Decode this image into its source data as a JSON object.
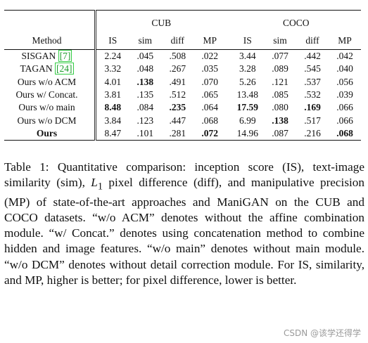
{
  "table": {
    "group_headers": [
      "CUB",
      "COCO"
    ],
    "method_header": "Method",
    "metric_headers": [
      "IS",
      "sim",
      "diff",
      "MP"
    ],
    "rows": [
      {
        "method_pre": "SISGAN ",
        "cite": "[7]",
        "method_post": "",
        "cub": [
          {
            "v": "2.24",
            "b": false
          },
          {
            "v": ".045",
            "b": false
          },
          {
            "v": ".508",
            "b": false
          },
          {
            "v": ".022",
            "b": false
          }
        ],
        "coco": [
          {
            "v": "3.44",
            "b": false
          },
          {
            "v": ".077",
            "b": false
          },
          {
            "v": ".442",
            "b": false
          },
          {
            "v": ".042",
            "b": false
          }
        ],
        "bold_method": false
      },
      {
        "method_pre": "TAGAN ",
        "cite": "[24]",
        "method_post": "",
        "cub": [
          {
            "v": "3.32",
            "b": false
          },
          {
            "v": ".048",
            "b": false
          },
          {
            "v": ".267",
            "b": false
          },
          {
            "v": ".035",
            "b": false
          }
        ],
        "coco": [
          {
            "v": "3.28",
            "b": false
          },
          {
            "v": ".089",
            "b": false
          },
          {
            "v": ".545",
            "b": false
          },
          {
            "v": ".040",
            "b": false
          }
        ],
        "bold_method": false
      },
      {
        "method_pre": "Ours w/o ACM",
        "cite": "",
        "method_post": "",
        "cub": [
          {
            "v": "4.01",
            "b": false
          },
          {
            "v": ".138",
            "b": true
          },
          {
            "v": ".491",
            "b": false
          },
          {
            "v": ".070",
            "b": false
          }
        ],
        "coco": [
          {
            "v": "5.26",
            "b": false
          },
          {
            "v": ".121",
            "b": false
          },
          {
            "v": ".537",
            "b": false
          },
          {
            "v": ".056",
            "b": false
          }
        ],
        "bold_method": false
      },
      {
        "method_pre": "Ours w/ Concat.",
        "cite": "",
        "method_post": "",
        "cub": [
          {
            "v": "3.81",
            "b": false
          },
          {
            "v": ".135",
            "b": false
          },
          {
            "v": ".512",
            "b": false
          },
          {
            "v": ".065",
            "b": false
          }
        ],
        "coco": [
          {
            "v": "13.48",
            "b": false
          },
          {
            "v": ".085",
            "b": false
          },
          {
            "v": ".532",
            "b": false
          },
          {
            "v": ".039",
            "b": false
          }
        ],
        "bold_method": false
      },
      {
        "method_pre": "Ours w/o main",
        "cite": "",
        "method_post": "",
        "cub": [
          {
            "v": "8.48",
            "b": true
          },
          {
            "v": ".084",
            "b": false
          },
          {
            "v": ".235",
            "b": true
          },
          {
            "v": ".064",
            "b": false
          }
        ],
        "coco": [
          {
            "v": "17.59",
            "b": true
          },
          {
            "v": ".080",
            "b": false
          },
          {
            "v": ".169",
            "b": true
          },
          {
            "v": ".066",
            "b": false
          }
        ],
        "bold_method": false
      },
      {
        "method_pre": "Ours w/o DCM",
        "cite": "",
        "method_post": "",
        "cub": [
          {
            "v": "3.84",
            "b": false
          },
          {
            "v": ".123",
            "b": false
          },
          {
            "v": ".447",
            "b": false
          },
          {
            "v": ".068",
            "b": false
          }
        ],
        "coco": [
          {
            "v": "6.99",
            "b": false
          },
          {
            "v": ".138",
            "b": true
          },
          {
            "v": ".517",
            "b": false
          },
          {
            "v": ".066",
            "b": false
          }
        ],
        "bold_method": false
      },
      {
        "method_pre": "Ours",
        "cite": "",
        "method_post": "",
        "cub": [
          {
            "v": "8.47",
            "b": false
          },
          {
            "v": ".101",
            "b": false
          },
          {
            "v": ".281",
            "b": false
          },
          {
            "v": ".072",
            "b": true
          }
        ],
        "coco": [
          {
            "v": "14.96",
            "b": false
          },
          {
            "v": ".087",
            "b": false
          },
          {
            "v": ".216",
            "b": false
          },
          {
            "v": ".068",
            "b": true
          }
        ],
        "bold_method": true
      }
    ]
  },
  "caption": {
    "label": "Table 1:",
    "part1": " Quantitative comparison: inception score (IS), text-image similarity (sim), ",
    "l1_var": "L",
    "l1_sub": "1",
    "part2": " pixel difference (diff), and manipulative precision (MP) of state-of-the-art approaches and ManiGAN on the CUB and COCO datasets. “w/o ACM” denotes without the affine combination module. “w/ Concat.” denotes using concatenation method to combine hidden and image features. “w/o main” denotes without main module. “w/o DCM” denotes without detail correction module. For IS, similarity, and MP, higher is better; for pixel difference, lower is better."
  },
  "watermark": "CSDN @该学还得学"
}
